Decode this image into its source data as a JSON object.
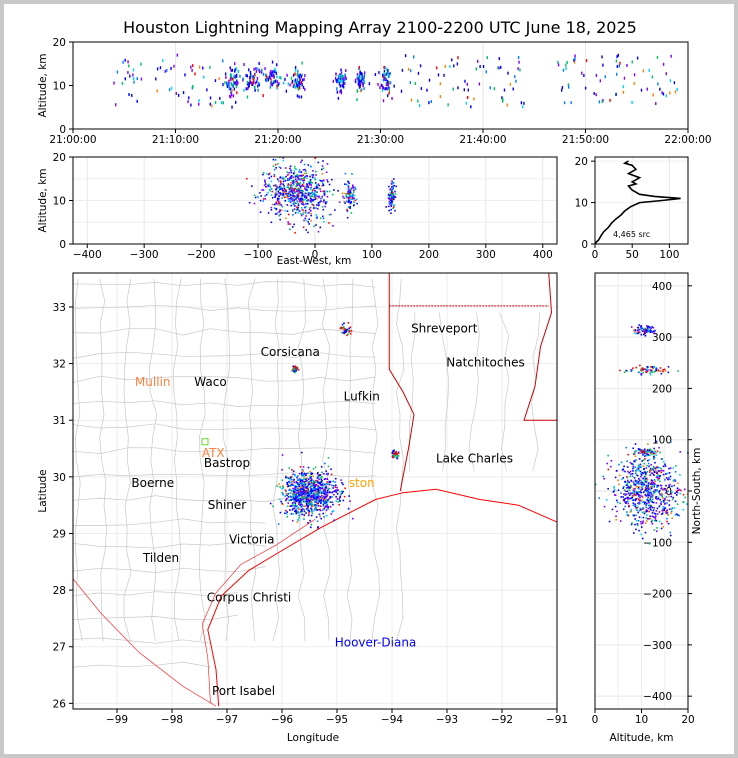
{
  "title": "Houston Lightning Mapping Array 2100-2200 UTC June 18, 2025",
  "colors": {
    "frame": "#c8c8c8",
    "coast": "#ff0000",
    "state_line": "#cc0000",
    "county": "#c8c8c8",
    "grid": "#dcdcdc"
  },
  "chart_data": [
    {
      "id": "time-altitude",
      "type": "scatter",
      "ylabel": "Altitude, km",
      "xlabel": "",
      "ylim": [
        0,
        20
      ],
      "yticks": [
        "0",
        "10",
        "20"
      ],
      "xticks": [
        "21:00:00",
        "21:10:00",
        "21:20:00",
        "21:30:00",
        "21:40:00",
        "21:50:00",
        "22:00:00"
      ],
      "xlim_minutes": [
        0,
        60
      ],
      "clusters": [
        {
          "t": 15.5,
          "alt": 11,
          "dt": 1.2,
          "dalt": 3
        },
        {
          "t": 17.5,
          "alt": 11,
          "dt": 1.5,
          "dalt": 3
        },
        {
          "t": 19.5,
          "alt": 12,
          "dt": 1.5,
          "dalt": 3
        },
        {
          "t": 22.0,
          "alt": 11,
          "dt": 1.0,
          "dalt": 3
        },
        {
          "t": 26.0,
          "alt": 11,
          "dt": 0.8,
          "dalt": 3
        },
        {
          "t": 28.0,
          "alt": 11,
          "dt": 0.8,
          "dalt": 3
        },
        {
          "t": 30.5,
          "alt": 11,
          "dt": 1.0,
          "dalt": 3
        },
        {
          "t": 10.0,
          "alt": 11,
          "dt": 6.0,
          "dalt": 6
        },
        {
          "t": 38.0,
          "alt": 11,
          "dt": 6.0,
          "dalt": 6
        },
        {
          "t": 53.0,
          "alt": 11,
          "dt": 6.0,
          "dalt": 6
        }
      ]
    },
    {
      "id": "ew-altitude",
      "type": "scatter",
      "xlabel": "East-West, km",
      "ylabel": "Altitude, km",
      "xlim": [
        -425,
        425
      ],
      "ylim": [
        0,
        20
      ],
      "xticks": [
        "−400",
        "−300",
        "−200",
        "−100",
        "0",
        "100",
        "200",
        "300",
        "400"
      ],
      "yticks": [
        "0",
        "10",
        "20"
      ],
      "clusters": [
        {
          "x": -30,
          "alt": 12,
          "dx": 30,
          "dalt": 6
        },
        {
          "x": 60,
          "alt": 11,
          "dx": 10,
          "dalt": 3
        },
        {
          "x": 135,
          "alt": 11,
          "dx": 6,
          "dalt": 3
        }
      ]
    },
    {
      "id": "altitude-histogram",
      "type": "line",
      "xlim": [
        0,
        125
      ],
      "ylim": [
        0,
        21
      ],
      "xticks": [
        "0",
        "50",
        "100"
      ],
      "yticks": [
        "0",
        "10",
        "20"
      ],
      "annotation": "4,465 src",
      "points": [
        [
          0,
          0
        ],
        [
          2,
          0.5
        ],
        [
          5,
          1
        ],
        [
          8,
          2
        ],
        [
          12,
          3
        ],
        [
          18,
          4
        ],
        [
          22,
          5
        ],
        [
          28,
          6
        ],
        [
          35,
          7
        ],
        [
          40,
          8
        ],
        [
          48,
          9
        ],
        [
          60,
          10
        ],
        [
          90,
          10.5
        ],
        [
          115,
          11
        ],
        [
          80,
          11.5
        ],
        [
          60,
          12
        ],
        [
          50,
          13
        ],
        [
          45,
          14
        ],
        [
          55,
          14.5
        ],
        [
          50,
          15
        ],
        [
          60,
          16
        ],
        [
          45,
          17
        ],
        [
          55,
          18
        ],
        [
          50,
          19
        ],
        [
          40,
          19.5
        ],
        [
          45,
          20
        ]
      ]
    },
    {
      "id": "plan-view-map",
      "type": "scatter",
      "xlabel": "Longitude",
      "ylabel": "Latitude",
      "xlim": [
        -99.8,
        -91
      ],
      "ylim": [
        25.9,
        33.6
      ],
      "xticks": [
        "−99",
        "−98",
        "−97",
        "−96",
        "−95",
        "−94",
        "−93",
        "−92",
        "−91"
      ],
      "yticks": [
        "26",
        "27",
        "28",
        "29",
        "30",
        "31",
        "32",
        "33"
      ],
      "labels": [
        {
          "text": "Shreveport",
          "lon": -93.05,
          "lat": 32.55,
          "color": "#000000"
        },
        {
          "text": "Corsicana",
          "lon": -95.85,
          "lat": 32.13,
          "color": "#000000"
        },
        {
          "text": "Mullin",
          "lon": -98.35,
          "lat": 31.6,
          "color": "#ff8040"
        },
        {
          "text": "Waco",
          "lon": -97.3,
          "lat": 31.6,
          "color": "#000000"
        },
        {
          "text": "Natchitoches",
          "lon": -92.3,
          "lat": 31.95,
          "color": "#000000"
        },
        {
          "text": "Lufkin",
          "lon": -94.55,
          "lat": 31.35,
          "color": "#000000"
        },
        {
          "text": "ATX",
          "lon": -97.25,
          "lat": 30.35,
          "color": "#ff8040"
        },
        {
          "text": "Bastrop",
          "lon": -97.0,
          "lat": 30.17,
          "color": "#000000"
        },
        {
          "text": "Lake Charles",
          "lon": -92.5,
          "lat": 30.25,
          "color": "#000000"
        },
        {
          "text": "Boerne",
          "lon": -98.35,
          "lat": 29.82,
          "color": "#000000"
        },
        {
          "text": "ston",
          "lon": -94.55,
          "lat": 29.82,
          "color": "#ffa500"
        },
        {
          "text": "Shiner",
          "lon": -97.0,
          "lat": 29.43,
          "color": "#000000"
        },
        {
          "text": "Victoria",
          "lon": -96.55,
          "lat": 28.82,
          "color": "#000000"
        },
        {
          "text": "Tilden",
          "lon": -98.2,
          "lat": 28.5,
          "color": "#000000"
        },
        {
          "text": "Corpus Christi",
          "lon": -96.6,
          "lat": 27.8,
          "color": "#000000"
        },
        {
          "text": "Hoover-Diana",
          "lon": -94.3,
          "lat": 27.0,
          "color": "#0000ff"
        },
        {
          "text": "Port Isabel",
          "lon": -96.7,
          "lat": 26.15,
          "color": "#000000"
        }
      ],
      "clusters": [
        {
          "lon": -95.5,
          "lat": 29.7,
          "dlon": 0.45,
          "dlat": 0.35
        },
        {
          "lon": -95.75,
          "lat": 31.9,
          "dlon": 0.05,
          "dlat": 0.05
        },
        {
          "lon": -94.85,
          "lat": 32.6,
          "dlon": 0.08,
          "dlat": 0.08
        },
        {
          "lon": -93.95,
          "lat": 30.4,
          "dlon": 0.06,
          "dlat": 0.05
        }
      ]
    },
    {
      "id": "altitude-ns",
      "type": "scatter",
      "xlabel": "Altitude, km",
      "ylabel": "North-South, km",
      "xlim": [
        0,
        20
      ],
      "ylim": [
        -425,
        425
      ],
      "xticks": [
        "0",
        "10",
        "20"
      ],
      "yticks": [
        "−400",
        "−300",
        "−200",
        "−100",
        "0",
        "100",
        "200",
        "300",
        "400"
      ],
      "clusters": [
        {
          "alt": 11,
          "y": 0,
          "dalt": 6,
          "dy": 50
        },
        {
          "alt": 11,
          "y": 75,
          "dalt": 2,
          "dy": 5
        },
        {
          "alt": 11,
          "y": 235,
          "dalt": 4,
          "dy": 5
        },
        {
          "alt": 11,
          "y": 313,
          "dalt": 2,
          "dy": 6
        }
      ]
    }
  ]
}
